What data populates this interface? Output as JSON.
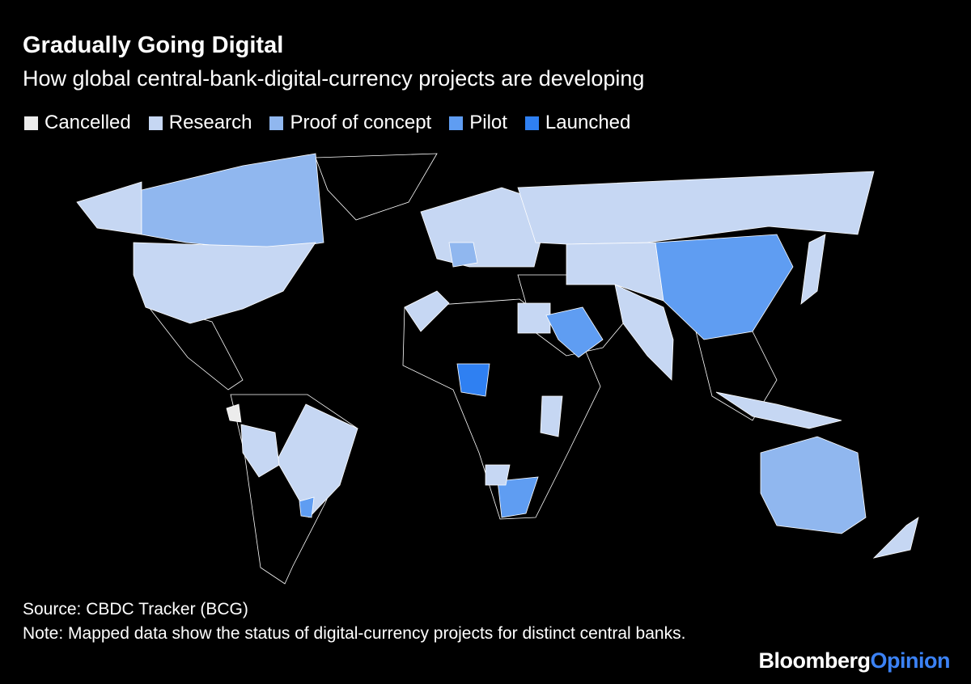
{
  "header": {
    "title": "Gradually Going Digital",
    "subtitle": "How global central-bank-digital-currency projects are developing"
  },
  "legend": [
    {
      "name": "Cancelled",
      "color": "#ececec"
    },
    {
      "name": "Research",
      "color": "#c6d7f3"
    },
    {
      "name": "Proof of concept",
      "color": "#90b7ef"
    },
    {
      "name": "Pilot",
      "color": "#5f9df2"
    },
    {
      "name": "Launched",
      "color": "#2f80f2"
    }
  ],
  "footer": {
    "source": "Source: CBDC Tracker (BCG)",
    "note": "Note: Mapped data show the status of digital-currency projects for distinct central banks.",
    "logo_main": "Bloomberg",
    "logo_accent": "Opinion"
  }
}
